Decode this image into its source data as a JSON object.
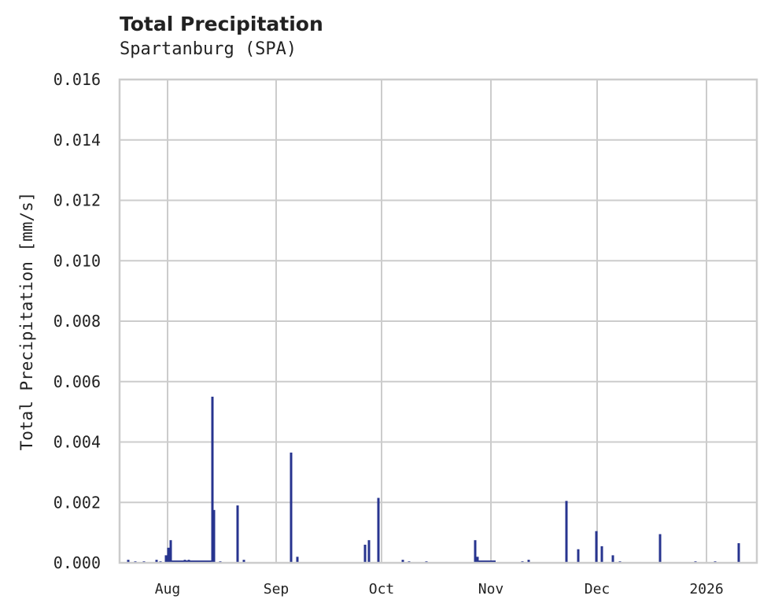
{
  "chart_data": {
    "type": "bar",
    "title": "Total Precipitation",
    "subtitle": "Spartanburg (SPA)",
    "xlabel": "",
    "ylabel": "Total Precipitation [mm/s]",
    "ylim": [
      0,
      0.016
    ],
    "yticks": [
      "0.000",
      "0.002",
      "0.004",
      "0.006",
      "0.008",
      "0.010",
      "0.012",
      "0.014",
      "0.016"
    ],
    "xticks": [
      {
        "label": "Aug",
        "px": 213
      },
      {
        "label": "Sep",
        "px": 351
      },
      {
        "label": "Oct",
        "px": 485
      },
      {
        "label": "Nov",
        "px": 624
      },
      {
        "label": "Dec",
        "px": 759
      },
      {
        "label": "2026",
        "px": 898
      }
    ],
    "grid": true,
    "color": "#27348f",
    "series": [
      {
        "name": "Total Precipitation",
        "points": [
          {
            "px": 163,
            "v": 0.0001
          },
          {
            "px": 172,
            "v": 5e-05
          },
          {
            "px": 183,
            "v": 5e-05
          },
          {
            "px": 199,
            "v": 0.0001
          },
          {
            "px": 204,
            "v": 5e-05
          },
          {
            "px": 211,
            "v": 0.00025
          },
          {
            "px": 214,
            "v": 0.0005
          },
          {
            "px": 217,
            "v": 0.00075
          },
          {
            "px": 220,
            "v": 5e-05
          },
          {
            "px": 225,
            "v": 5e-05
          },
          {
            "px": 235,
            "v": 0.0001
          },
          {
            "px": 240,
            "v": 0.0001
          },
          {
            "px": 250,
            "v": 5e-05
          },
          {
            "px": 260,
            "v": 5e-05
          },
          {
            "px": 270,
            "v": 0.0055
          },
          {
            "px": 272,
            "v": 0.00175
          },
          {
            "px": 280,
            "v": 5e-05
          },
          {
            "px": 302,
            "v": 0.0019
          },
          {
            "px": 310,
            "v": 0.0001
          },
          {
            "px": 370,
            "v": 0.00365
          },
          {
            "px": 378,
            "v": 0.0002
          },
          {
            "px": 464,
            "v": 0.0006
          },
          {
            "px": 469,
            "v": 0.00075
          },
          {
            "px": 481,
            "v": 0.00215
          },
          {
            "px": 512,
            "v": 0.0001
          },
          {
            "px": 520,
            "v": 5e-05
          },
          {
            "px": 542,
            "v": 5e-05
          },
          {
            "px": 604,
            "v": 0.00075
          },
          {
            "px": 607,
            "v": 0.0002
          },
          {
            "px": 612,
            "v": 5e-05
          },
          {
            "px": 625,
            "v": 5e-05
          },
          {
            "px": 664,
            "v": 5e-05
          },
          {
            "px": 672,
            "v": 0.0001
          },
          {
            "px": 720,
            "v": 0.00205
          },
          {
            "px": 735,
            "v": 0.00045
          },
          {
            "px": 758,
            "v": 0.00105
          },
          {
            "px": 765,
            "v": 0.00055
          },
          {
            "px": 779,
            "v": 0.00025
          },
          {
            "px": 788,
            "v": 5e-05
          },
          {
            "px": 839,
            "v": 0.00095
          },
          {
            "px": 884,
            "v": 5e-05
          },
          {
            "px": 909,
            "v": 5e-05
          },
          {
            "px": 939,
            "v": 0.00065
          }
        ]
      }
    ]
  }
}
